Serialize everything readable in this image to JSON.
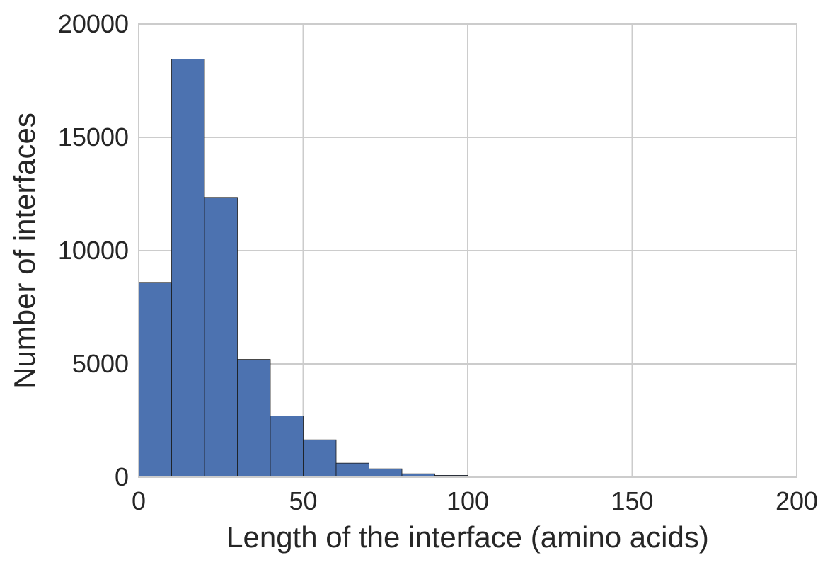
{
  "chart_data": {
    "type": "bar",
    "subtype": "histogram",
    "title": "",
    "xlabel": "Length of the interface (amino acids)",
    "ylabel": "Number of interfaces",
    "xlim": [
      0,
      200
    ],
    "ylim": [
      0,
      20000
    ],
    "xticks": [
      0,
      50,
      100,
      150,
      200
    ],
    "yticks": [
      0,
      5000,
      10000,
      15000,
      20000
    ],
    "grid": true,
    "legend": "none",
    "bar_color": "#4c72b0",
    "bins": [
      {
        "x0": 0,
        "x1": 10,
        "count": 8600
      },
      {
        "x0": 10,
        "x1": 20,
        "count": 18450
      },
      {
        "x0": 20,
        "x1": 30,
        "count": 12350
      },
      {
        "x0": 30,
        "x1": 40,
        "count": 5200
      },
      {
        "x0": 40,
        "x1": 50,
        "count": 2700
      },
      {
        "x0": 50,
        "x1": 60,
        "count": 1650
      },
      {
        "x0": 60,
        "x1": 70,
        "count": 620
      },
      {
        "x0": 70,
        "x1": 80,
        "count": 370
      },
      {
        "x0": 80,
        "x1": 90,
        "count": 150
      },
      {
        "x0": 90,
        "x1": 100,
        "count": 80
      },
      {
        "x0": 100,
        "x1": 110,
        "count": 40
      }
    ]
  }
}
